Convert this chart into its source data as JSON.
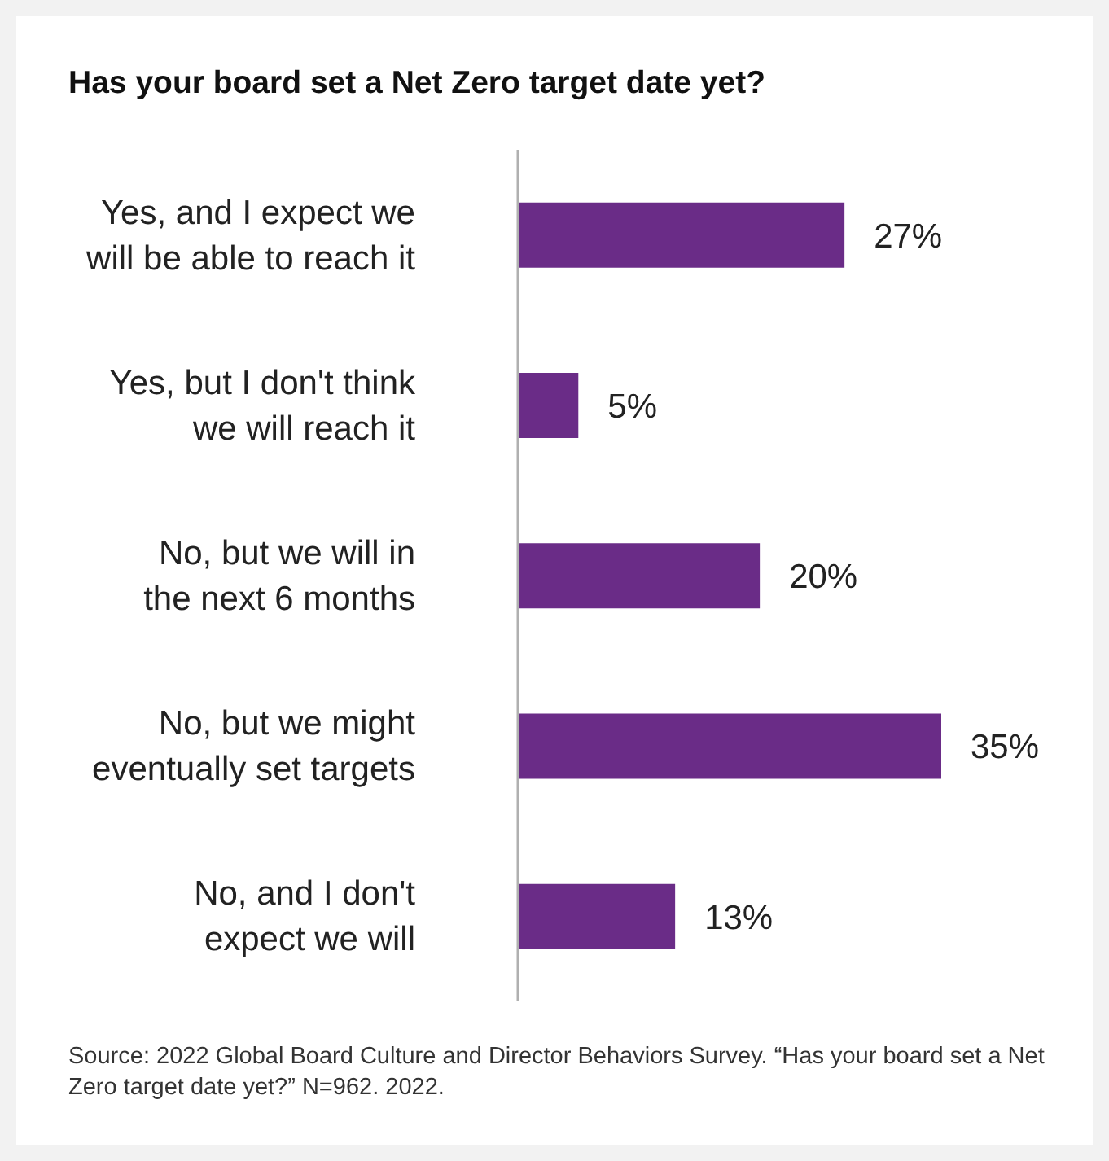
{
  "chart_data": {
    "type": "bar",
    "orientation": "horizontal",
    "title": "Has your board set a Net Zero target date yet?",
    "categories": [
      "Yes, and I expect we will be able to reach it",
      "Yes, but I don't think we will reach it",
      "No, but we will in the next 6 months",
      "No, but we might eventually set targets",
      "No, and I don't expect we will"
    ],
    "values": [
      27,
      5,
      20,
      35,
      13
    ],
    "value_labels": [
      "27%",
      "5%",
      "20%",
      "35%",
      "13%"
    ],
    "color": "#6a2c87",
    "annotations": [
      "Source: 2022 Global Board Culture and Director Behaviors Survey. “Has your board set a Net Zero target date yet?” N=962. 2022."
    ]
  }
}
